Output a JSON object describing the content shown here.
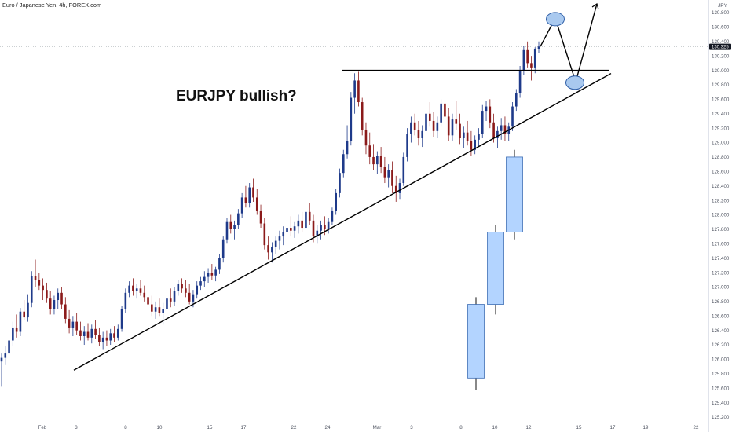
{
  "header": {
    "symbol_line": "Euro / Japanese Yen, 4h, FOREX.com"
  },
  "annotation": {
    "text": "EURJPY bullish?"
  },
  "price_axis": {
    "unit": "JPY",
    "labels": [
      "130.800",
      "130.600",
      "130.400",
      "130.200",
      "130.000",
      "129.800",
      "129.600",
      "129.400",
      "129.200",
      "129.000",
      "128.800",
      "128.600",
      "128.400",
      "128.200",
      "128.000",
      "127.800",
      "127.600",
      "127.400",
      "127.200",
      "127.000",
      "126.800",
      "126.600",
      "126.400",
      "126.200",
      "126.000",
      "125.800",
      "125.600",
      "125.400",
      "125.200"
    ],
    "current_price": "130.325"
  },
  "time_axis": {
    "labels": [
      "Feb",
      "3",
      "8",
      "10",
      "15",
      "17",
      "22",
      "24",
      "Mar",
      "3",
      "8",
      "10",
      "12",
      "15",
      "17",
      "19",
      "22"
    ]
  },
  "colors": {
    "up": "#1e3a8a",
    "down": "#8b1a1a",
    "trendline": "#000000",
    "projection_fill": "#b3d4ff",
    "projection_stroke": "#3f6fb5",
    "ellipse_fill": "#a9c9ef"
  },
  "chart_data": {
    "type": "candlestick",
    "title": "Euro / Japanese Yen, 4h, FOREX.com",
    "ylim": [
      125.1,
      130.95
    ],
    "price_unit": "JPY",
    "candles": [
      {
        "o": 125.97,
        "h": 126.08,
        "l": 125.62,
        "c": 126.02
      },
      {
        "o": 126.02,
        "h": 126.19,
        "l": 125.92,
        "c": 126.08
      },
      {
        "o": 126.08,
        "h": 126.34,
        "l": 126.02,
        "c": 126.26
      },
      {
        "o": 126.26,
        "h": 126.52,
        "l": 126.18,
        "c": 126.44
      },
      {
        "o": 126.44,
        "h": 126.62,
        "l": 126.3,
        "c": 126.38
      },
      {
        "o": 126.38,
        "h": 126.71,
        "l": 126.32,
        "c": 126.66
      },
      {
        "o": 126.66,
        "h": 126.82,
        "l": 126.54,
        "c": 126.58
      },
      {
        "o": 126.58,
        "h": 126.9,
        "l": 126.52,
        "c": 126.78
      },
      {
        "o": 126.78,
        "h": 127.22,
        "l": 126.72,
        "c": 127.15
      },
      {
        "o": 127.15,
        "h": 127.38,
        "l": 127.0,
        "c": 127.1
      },
      {
        "o": 127.1,
        "h": 127.2,
        "l": 126.96,
        "c": 127.02
      },
      {
        "o": 127.02,
        "h": 127.12,
        "l": 126.82,
        "c": 126.96
      },
      {
        "o": 126.96,
        "h": 127.06,
        "l": 126.78,
        "c": 126.84
      },
      {
        "o": 126.84,
        "h": 126.95,
        "l": 126.62,
        "c": 126.7
      },
      {
        "o": 126.7,
        "h": 126.88,
        "l": 126.62,
        "c": 126.82
      },
      {
        "o": 126.82,
        "h": 126.98,
        "l": 126.7,
        "c": 126.92
      },
      {
        "o": 126.92,
        "h": 127.0,
        "l": 126.7,
        "c": 126.76
      },
      {
        "o": 126.76,
        "h": 126.86,
        "l": 126.5,
        "c": 126.56
      },
      {
        "o": 126.56,
        "h": 126.68,
        "l": 126.36,
        "c": 126.44
      },
      {
        "o": 126.44,
        "h": 126.6,
        "l": 126.32,
        "c": 126.52
      },
      {
        "o": 126.52,
        "h": 126.64,
        "l": 126.34,
        "c": 126.4
      },
      {
        "o": 126.4,
        "h": 126.52,
        "l": 126.26,
        "c": 126.32
      },
      {
        "o": 126.32,
        "h": 126.46,
        "l": 126.2,
        "c": 126.38
      },
      {
        "o": 126.38,
        "h": 126.5,
        "l": 126.26,
        "c": 126.3
      },
      {
        "o": 126.3,
        "h": 126.48,
        "l": 126.22,
        "c": 126.42
      },
      {
        "o": 126.42,
        "h": 126.54,
        "l": 126.28,
        "c": 126.34
      },
      {
        "o": 126.34,
        "h": 126.44,
        "l": 126.18,
        "c": 126.24
      },
      {
        "o": 126.24,
        "h": 126.38,
        "l": 126.14,
        "c": 126.3
      },
      {
        "o": 126.3,
        "h": 126.4,
        "l": 126.18,
        "c": 126.26
      },
      {
        "o": 126.26,
        "h": 126.42,
        "l": 126.2,
        "c": 126.36
      },
      {
        "o": 126.36,
        "h": 126.46,
        "l": 126.24,
        "c": 126.3
      },
      {
        "o": 126.3,
        "h": 126.48,
        "l": 126.26,
        "c": 126.42
      },
      {
        "o": 126.42,
        "h": 126.74,
        "l": 126.38,
        "c": 126.7
      },
      {
        "o": 126.7,
        "h": 126.98,
        "l": 126.64,
        "c": 126.92
      },
      {
        "o": 126.92,
        "h": 127.08,
        "l": 126.86,
        "c": 127.02
      },
      {
        "o": 127.02,
        "h": 127.12,
        "l": 126.88,
        "c": 126.94
      },
      {
        "o": 126.94,
        "h": 127.04,
        "l": 126.84,
        "c": 126.98
      },
      {
        "o": 126.98,
        "h": 127.1,
        "l": 126.88,
        "c": 126.92
      },
      {
        "o": 126.92,
        "h": 127.02,
        "l": 126.8,
        "c": 126.86
      },
      {
        "o": 126.86,
        "h": 126.96,
        "l": 126.7,
        "c": 126.76
      },
      {
        "o": 126.76,
        "h": 126.88,
        "l": 126.6,
        "c": 126.66
      },
      {
        "o": 126.66,
        "h": 126.8,
        "l": 126.56,
        "c": 126.72
      },
      {
        "o": 126.72,
        "h": 126.84,
        "l": 126.6,
        "c": 126.64
      },
      {
        "o": 126.64,
        "h": 126.78,
        "l": 126.48,
        "c": 126.7
      },
      {
        "o": 126.7,
        "h": 126.9,
        "l": 126.64,
        "c": 126.84
      },
      {
        "o": 126.84,
        "h": 126.98,
        "l": 126.72,
        "c": 126.8
      },
      {
        "o": 126.8,
        "h": 127.0,
        "l": 126.74,
        "c": 126.94
      },
      {
        "o": 126.94,
        "h": 127.1,
        "l": 126.88,
        "c": 127.04
      },
      {
        "o": 127.04,
        "h": 127.12,
        "l": 126.92,
        "c": 126.98
      },
      {
        "o": 126.98,
        "h": 127.1,
        "l": 126.86,
        "c": 126.92
      },
      {
        "o": 126.92,
        "h": 127.04,
        "l": 126.76,
        "c": 126.8
      },
      {
        "o": 126.8,
        "h": 126.96,
        "l": 126.72,
        "c": 126.9
      },
      {
        "o": 126.9,
        "h": 127.08,
        "l": 126.84,
        "c": 127.02
      },
      {
        "o": 127.02,
        "h": 127.14,
        "l": 126.96,
        "c": 127.08
      },
      {
        "o": 127.08,
        "h": 127.22,
        "l": 127.0,
        "c": 127.14
      },
      {
        "o": 127.14,
        "h": 127.26,
        "l": 127.06,
        "c": 127.2
      },
      {
        "o": 127.2,
        "h": 127.32,
        "l": 127.1,
        "c": 127.16
      },
      {
        "o": 127.16,
        "h": 127.28,
        "l": 127.08,
        "c": 127.24
      },
      {
        "o": 127.24,
        "h": 127.46,
        "l": 127.18,
        "c": 127.4
      },
      {
        "o": 127.4,
        "h": 127.7,
        "l": 127.34,
        "c": 127.66
      },
      {
        "o": 127.66,
        "h": 127.96,
        "l": 127.6,
        "c": 127.9
      },
      {
        "o": 127.9,
        "h": 128.0,
        "l": 127.74,
        "c": 127.8
      },
      {
        "o": 127.8,
        "h": 127.92,
        "l": 127.66,
        "c": 127.86
      },
      {
        "o": 127.86,
        "h": 128.08,
        "l": 127.8,
        "c": 128.02
      },
      {
        "o": 128.02,
        "h": 128.3,
        "l": 127.96,
        "c": 128.24
      },
      {
        "o": 128.24,
        "h": 128.4,
        "l": 128.1,
        "c": 128.16
      },
      {
        "o": 128.16,
        "h": 128.44,
        "l": 128.1,
        "c": 128.38
      },
      {
        "o": 128.38,
        "h": 128.5,
        "l": 128.18,
        "c": 128.24
      },
      {
        "o": 128.24,
        "h": 128.36,
        "l": 128.0,
        "c": 128.06
      },
      {
        "o": 128.06,
        "h": 128.14,
        "l": 127.82,
        "c": 127.88
      },
      {
        "o": 127.88,
        "h": 127.96,
        "l": 127.52,
        "c": 127.58
      },
      {
        "o": 127.58,
        "h": 127.7,
        "l": 127.38,
        "c": 127.48
      },
      {
        "o": 127.48,
        "h": 127.62,
        "l": 127.34,
        "c": 127.56
      },
      {
        "o": 127.56,
        "h": 127.7,
        "l": 127.46,
        "c": 127.64
      },
      {
        "o": 127.64,
        "h": 127.78,
        "l": 127.52,
        "c": 127.7
      },
      {
        "o": 127.7,
        "h": 127.84,
        "l": 127.58,
        "c": 127.76
      },
      {
        "o": 127.76,
        "h": 127.9,
        "l": 127.64,
        "c": 127.82
      },
      {
        "o": 127.82,
        "h": 127.98,
        "l": 127.7,
        "c": 127.78
      },
      {
        "o": 127.78,
        "h": 127.9,
        "l": 127.68,
        "c": 127.84
      },
      {
        "o": 127.84,
        "h": 128.0,
        "l": 127.74,
        "c": 127.92
      },
      {
        "o": 127.92,
        "h": 128.04,
        "l": 127.76,
        "c": 127.82
      },
      {
        "o": 127.82,
        "h": 128.1,
        "l": 127.76,
        "c": 128.04
      },
      {
        "o": 128.04,
        "h": 128.16,
        "l": 127.86,
        "c": 127.92
      },
      {
        "o": 127.92,
        "h": 128.0,
        "l": 127.62,
        "c": 127.7
      },
      {
        "o": 127.7,
        "h": 127.86,
        "l": 127.6,
        "c": 127.78
      },
      {
        "o": 127.78,
        "h": 127.92,
        "l": 127.66,
        "c": 127.86
      },
      {
        "o": 127.86,
        "h": 127.98,
        "l": 127.72,
        "c": 127.8
      },
      {
        "o": 127.8,
        "h": 127.96,
        "l": 127.74,
        "c": 127.9
      },
      {
        "o": 127.9,
        "h": 128.1,
        "l": 127.86,
        "c": 128.06
      },
      {
        "o": 128.06,
        "h": 128.36,
        "l": 128.0,
        "c": 128.3
      },
      {
        "o": 128.3,
        "h": 128.64,
        "l": 128.24,
        "c": 128.58
      },
      {
        "o": 128.58,
        "h": 128.9,
        "l": 128.52,
        "c": 128.84
      },
      {
        "o": 128.84,
        "h": 129.24,
        "l": 128.78,
        "c": 129.02
      },
      {
        "o": 129.02,
        "h": 129.7,
        "l": 128.96,
        "c": 129.62
      },
      {
        "o": 129.62,
        "h": 129.96,
        "l": 129.4,
        "c": 129.86
      },
      {
        "o": 129.86,
        "h": 129.98,
        "l": 129.5,
        "c": 129.56
      },
      {
        "o": 129.56,
        "h": 129.62,
        "l": 129.1,
        "c": 129.18
      },
      {
        "o": 129.18,
        "h": 129.28,
        "l": 128.84,
        "c": 128.96
      },
      {
        "o": 128.96,
        "h": 129.14,
        "l": 128.7,
        "c": 128.8
      },
      {
        "o": 128.8,
        "h": 128.98,
        "l": 128.62,
        "c": 128.7
      },
      {
        "o": 128.7,
        "h": 128.88,
        "l": 128.56,
        "c": 128.82
      },
      {
        "o": 128.82,
        "h": 128.94,
        "l": 128.58,
        "c": 128.66
      },
      {
        "o": 128.66,
        "h": 128.8,
        "l": 128.44,
        "c": 128.52
      },
      {
        "o": 128.52,
        "h": 128.7,
        "l": 128.38,
        "c": 128.62
      },
      {
        "o": 128.62,
        "h": 128.74,
        "l": 128.3,
        "c": 128.4
      },
      {
        "o": 128.4,
        "h": 128.54,
        "l": 128.18,
        "c": 128.3
      },
      {
        "o": 128.3,
        "h": 128.5,
        "l": 128.22,
        "c": 128.44
      },
      {
        "o": 128.44,
        "h": 128.86,
        "l": 128.4,
        "c": 128.8
      },
      {
        "o": 128.8,
        "h": 129.2,
        "l": 128.74,
        "c": 129.12
      },
      {
        "o": 129.12,
        "h": 129.36,
        "l": 129.0,
        "c": 129.28
      },
      {
        "o": 129.28,
        "h": 129.4,
        "l": 129.1,
        "c": 129.18
      },
      {
        "o": 129.18,
        "h": 129.3,
        "l": 128.96,
        "c": 129.06
      },
      {
        "o": 129.06,
        "h": 129.24,
        "l": 128.94,
        "c": 129.16
      },
      {
        "o": 129.16,
        "h": 129.48,
        "l": 129.08,
        "c": 129.4
      },
      {
        "o": 129.4,
        "h": 129.56,
        "l": 129.22,
        "c": 129.3
      },
      {
        "o": 129.3,
        "h": 129.42,
        "l": 129.08,
        "c": 129.16
      },
      {
        "o": 129.16,
        "h": 129.36,
        "l": 129.06,
        "c": 129.28
      },
      {
        "o": 129.28,
        "h": 129.6,
        "l": 129.22,
        "c": 129.54
      },
      {
        "o": 129.54,
        "h": 129.66,
        "l": 129.28,
        "c": 129.36
      },
      {
        "o": 129.36,
        "h": 129.48,
        "l": 129.02,
        "c": 129.1
      },
      {
        "o": 129.1,
        "h": 129.4,
        "l": 129.02,
        "c": 129.32
      },
      {
        "o": 129.32,
        "h": 129.58,
        "l": 129.18,
        "c": 129.26
      },
      {
        "o": 129.26,
        "h": 129.4,
        "l": 128.98,
        "c": 129.06
      },
      {
        "o": 129.06,
        "h": 129.22,
        "l": 128.92,
        "c": 129.14
      },
      {
        "o": 129.14,
        "h": 129.3,
        "l": 128.96,
        "c": 129.02
      },
      {
        "o": 129.02,
        "h": 129.16,
        "l": 128.82,
        "c": 128.9
      },
      {
        "o": 128.9,
        "h": 129.1,
        "l": 128.84,
        "c": 129.04
      },
      {
        "o": 129.04,
        "h": 129.2,
        "l": 128.94,
        "c": 129.12
      },
      {
        "o": 129.12,
        "h": 129.52,
        "l": 129.06,
        "c": 129.44
      },
      {
        "o": 129.44,
        "h": 129.58,
        "l": 129.3,
        "c": 129.5
      },
      {
        "o": 129.5,
        "h": 129.6,
        "l": 129.2,
        "c": 129.28
      },
      {
        "o": 129.28,
        "h": 129.4,
        "l": 129.0,
        "c": 129.06
      },
      {
        "o": 129.06,
        "h": 129.22,
        "l": 128.92,
        "c": 129.16
      },
      {
        "o": 129.16,
        "h": 129.34,
        "l": 129.04,
        "c": 129.24
      },
      {
        "o": 129.24,
        "h": 129.36,
        "l": 129.02,
        "c": 129.12
      },
      {
        "o": 129.12,
        "h": 129.28,
        "l": 129.02,
        "c": 129.22
      },
      {
        "o": 129.22,
        "h": 129.56,
        "l": 129.16,
        "c": 129.5
      },
      {
        "o": 129.5,
        "h": 129.74,
        "l": 129.44,
        "c": 129.68
      },
      {
        "o": 129.68,
        "h": 130.06,
        "l": 129.62,
        "c": 130.0
      },
      {
        "o": 130.0,
        "h": 130.34,
        "l": 129.94,
        "c": 130.28
      },
      {
        "o": 130.28,
        "h": 130.4,
        "l": 130.04,
        "c": 130.1
      },
      {
        "o": 130.1,
        "h": 130.2,
        "l": 129.86,
        "c": 130.04
      },
      {
        "o": 130.04,
        "h": 130.32,
        "l": 129.96,
        "c": 130.3
      },
      {
        "o": 130.3,
        "h": 130.4,
        "l": 130.24,
        "c": 130.33
      }
    ],
    "projection_candles": [
      {
        "o": 125.74,
        "h": 126.86,
        "l": 125.58,
        "c": 126.76
      },
      {
        "o": 126.76,
        "h": 127.86,
        "l": 126.62,
        "c": 127.76
      },
      {
        "o": 127.76,
        "h": 128.9,
        "l": 127.66,
        "c": 128.8
      }
    ],
    "resistance_level": 130.0,
    "current_price": 130.325,
    "trendline": {
      "from": 125.85,
      "to": 130.0
    },
    "projected_path": [
      130.33,
      130.72,
      129.84,
      130.92
    ]
  }
}
